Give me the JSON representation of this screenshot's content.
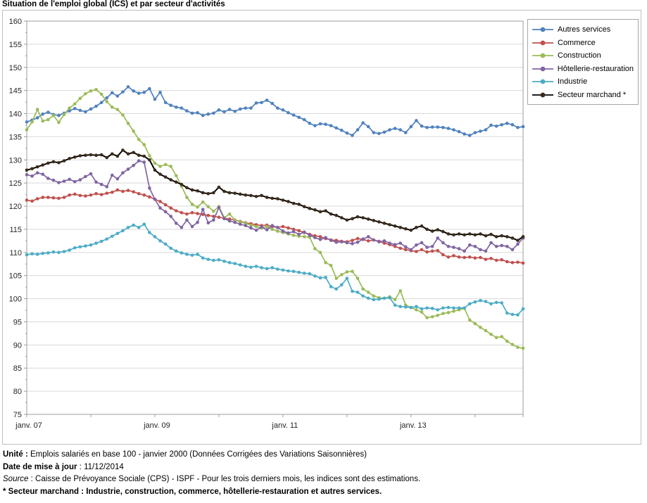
{
  "chart_data": {
    "type": "line",
    "title": "Situation de l'emploi global (ICS) et par secteur d'activités",
    "x_unit": "month",
    "x_start": "janv. 2007",
    "x_end": "oct. 2014",
    "n_points": 94,
    "x_tick_labels": [
      "janv. 07",
      "janv. 09",
      "janv. 11",
      "janv. 13"
    ],
    "x_tick_months": [
      0,
      24,
      48,
      72
    ],
    "x_minor_tick_every_months": 12,
    "ylim": [
      75,
      160
    ],
    "y_major_step": 5,
    "y_minor_step": 2.5,
    "grid": "horizontal-major",
    "grid_color": "#d9d9d9",
    "axis_color": "#9c9c9c",
    "legend_position": "top-right",
    "series": [
      {
        "name": "Autres services",
        "color": "#4F81BD",
        "values": [
          138.2,
          138.6,
          139.1,
          139.9,
          140.3,
          139.8,
          139.6,
          140.1,
          140.6,
          141.1,
          140.7,
          140.4,
          141.0,
          141.6,
          142.4,
          143.4,
          144.5,
          143.8,
          144.7,
          145.8,
          144.9,
          144.4,
          144.6,
          145.4,
          143.1,
          144.6,
          142.4,
          141.8,
          141.4,
          141.2,
          140.6,
          140.1,
          140.2,
          139.6,
          139.9,
          140.1,
          140.8,
          140.4,
          140.9,
          140.5,
          141.0,
          141.2,
          141.2,
          142.3,
          142.4,
          142.9,
          142.2,
          141.2,
          140.8,
          140.2,
          139.7,
          139.2,
          138.7,
          137.9,
          137.4,
          137.8,
          137.7,
          137.4,
          136.9,
          136.4,
          135.8,
          135.3,
          136.5,
          138.0,
          137.2,
          135.9,
          135.7,
          136.0,
          136.5,
          136.8,
          136.5,
          135.9,
          137.2,
          138.5,
          137.3,
          137.0,
          137.1,
          137.1,
          137.0,
          136.8,
          136.5,
          136.1,
          135.6,
          135.3,
          135.9,
          136.2,
          136.5,
          137.5,
          137.3,
          137.6,
          137.9,
          137.6,
          137.0,
          137.2
        ]
      },
      {
        "name": "Commerce",
        "color": "#C0504D",
        "values": [
          121.3,
          121.1,
          121.6,
          121.9,
          121.9,
          121.8,
          121.7,
          121.9,
          122.4,
          122.6,
          122.3,
          122.2,
          122.4,
          122.7,
          122.5,
          122.8,
          123.0,
          123.5,
          123.2,
          123.4,
          123.1,
          122.7,
          122.4,
          122.0,
          121.5,
          121.0,
          120.3,
          119.6,
          119.0,
          118.6,
          118.3,
          118.6,
          118.4,
          118.2,
          118.0,
          117.8,
          117.6,
          117.4,
          117.2,
          117.0,
          116.7,
          116.4,
          116.2,
          116.0,
          115.8,
          115.9,
          115.6,
          115.4,
          115.6,
          115.3,
          115.0,
          114.7,
          114.3,
          113.9,
          113.6,
          113.4,
          113.0,
          112.7,
          112.6,
          112.4,
          112.3,
          112.6,
          113.0,
          112.8,
          112.5,
          112.7,
          112.4,
          112.0,
          111.7,
          111.3,
          110.9,
          110.6,
          110.4,
          110.2,
          110.6,
          110.1,
          110.3,
          110.4,
          109.5,
          109.0,
          109.3,
          109.0,
          108.9,
          109.0,
          108.8,
          108.9,
          108.5,
          108.7,
          108.3,
          108.4,
          108.0,
          107.8,
          107.9,
          107.7
        ]
      },
      {
        "name": "Construction",
        "color": "#9BBB59",
        "values": [
          136.5,
          138.2,
          140.9,
          138.4,
          138.7,
          139.6,
          138.1,
          139.8,
          141.2,
          142.1,
          143.3,
          144.3,
          144.9,
          145.2,
          144.2,
          142.6,
          141.4,
          140.9,
          139.7,
          137.9,
          136.2,
          134.4,
          133.3,
          130.9,
          129.3,
          128.6,
          129.0,
          128.6,
          126.6,
          124.3,
          121.9,
          120.4,
          119.8,
          120.9,
          119.9,
          118.9,
          119.9,
          117.5,
          118.3,
          117.0,
          116.6,
          116.3,
          115.9,
          115.6,
          115.3,
          115.6,
          115.0,
          114.6,
          114.3,
          114.0,
          113.7,
          113.5,
          113.4,
          113.3,
          110.8,
          110.0,
          107.8,
          107.2,
          104.4,
          105.2,
          105.8,
          105.9,
          104.4,
          102.1,
          101.4,
          100.6,
          100.2,
          100.1,
          100.4,
          99.8,
          101.7,
          98.6,
          98.1,
          97.6,
          97.1,
          95.9,
          96.1,
          96.4,
          96.8,
          97.0,
          97.3,
          97.6,
          97.9,
          95.4,
          94.6,
          93.8,
          93.1,
          92.3,
          91.6,
          91.8,
          90.8,
          90.1,
          89.5,
          89.3
        ]
      },
      {
        "name": "Hôtellerie-restauration",
        "color": "#8064A2",
        "values": [
          126.8,
          126.5,
          127.2,
          126.9,
          126.0,
          125.6,
          125.1,
          125.4,
          125.8,
          125.3,
          125.7,
          126.4,
          127.0,
          125.2,
          124.7,
          124.2,
          126.7,
          125.9,
          127.2,
          128.0,
          128.8,
          129.8,
          129.5,
          123.9,
          121.5,
          119.6,
          118.8,
          117.8,
          116.3,
          115.4,
          117.0,
          115.6,
          116.5,
          119.3,
          116.4,
          117.0,
          119.7,
          117.3,
          116.8,
          116.5,
          116.1,
          115.8,
          115.3,
          114.8,
          115.5,
          114.9,
          115.8,
          115.4,
          114.6,
          114.2,
          114.5,
          113.9,
          114.4,
          113.7,
          113.2,
          112.8,
          113.2,
          112.6,
          112.2,
          112.3,
          112.1,
          111.9,
          112.2,
          112.9,
          113.4,
          112.7,
          112.3,
          112.5,
          112.0,
          111.7,
          112.0,
          111.2,
          110.6,
          111.6,
          112.1,
          111.1,
          111.3,
          113.1,
          112.1,
          111.3,
          111.1,
          110.8,
          110.3,
          111.6,
          111.3,
          110.6,
          110.3,
          112.1,
          111.3,
          111.5,
          111.3,
          110.6,
          111.8,
          113.1
        ]
      },
      {
        "name": "Industrie",
        "color": "#4BACC6",
        "values": [
          109.5,
          109.7,
          109.6,
          109.8,
          109.9,
          110.1,
          110.0,
          110.2,
          110.5,
          111.0,
          111.2,
          111.4,
          111.6,
          112.0,
          112.4,
          112.9,
          113.5,
          114.1,
          114.7,
          115.4,
          115.9,
          115.4,
          116.1,
          114.3,
          113.4,
          112.5,
          111.8,
          110.9,
          110.3,
          109.9,
          109.6,
          109.4,
          109.6,
          108.8,
          108.5,
          108.3,
          108.4,
          108.1,
          107.8,
          107.6,
          107.3,
          107.0,
          106.8,
          107.0,
          106.7,
          106.5,
          106.7,
          106.4,
          106.2,
          106.0,
          105.9,
          105.7,
          105.5,
          105.4,
          104.9,
          104.5,
          104.6,
          102.6,
          102.1,
          103.0,
          104.4,
          101.6,
          101.4,
          100.6,
          100.1,
          99.8,
          99.9,
          100.1,
          100.2,
          98.6,
          98.3,
          98.2,
          98.1,
          98.3,
          97.8,
          98.0,
          97.9,
          97.6,
          98.0,
          98.1,
          98.0,
          98.0,
          98.0,
          98.9,
          99.3,
          99.6,
          99.4,
          98.9,
          99.2,
          99.1,
          96.9,
          96.6,
          96.5,
          97.8
        ]
      },
      {
        "name": "Secteur marchand *",
        "color": "#000000",
        "marker_color": "#3B2A17",
        "line_width": 2,
        "values": [
          127.8,
          128.1,
          128.5,
          128.9,
          129.3,
          129.6,
          129.4,
          129.8,
          130.3,
          130.6,
          130.9,
          131.0,
          131.1,
          131.0,
          131.1,
          130.5,
          131.3,
          130.8,
          132.1,
          131.3,
          131.6,
          131.0,
          130.8,
          130.0,
          127.8,
          126.9,
          126.3,
          125.7,
          125.2,
          124.7,
          124.0,
          123.5,
          123.3,
          122.9,
          122.7,
          122.9,
          124.1,
          123.2,
          122.9,
          122.8,
          122.6,
          122.4,
          122.3,
          122.1,
          122.3,
          121.9,
          121.7,
          121.6,
          121.3,
          121.0,
          120.6,
          120.4,
          119.9,
          119.5,
          119.2,
          118.8,
          119.0,
          118.3,
          118.0,
          117.5,
          117.0,
          117.3,
          117.7,
          117.5,
          117.2,
          116.9,
          116.6,
          116.3,
          116.0,
          115.7,
          115.4,
          115.1,
          114.8,
          115.4,
          115.7,
          115.0,
          114.6,
          114.9,
          114.5,
          114.0,
          113.8,
          114.0,
          113.8,
          114.0,
          113.8,
          114.0,
          113.6,
          113.9,
          113.4,
          113.6,
          113.4,
          113.1,
          112.6,
          113.4
        ]
      }
    ]
  },
  "footer": {
    "lines": [
      {
        "label": "Unité",
        "sep": " : ",
        "text": "Emplois salariés en base 100 - janvier 2000 (Données Corrigées des Variations Saisonnières)"
      },
      {
        "label": "Date de mise à jour",
        "sep": " : ",
        "text": "11/12/2014"
      },
      {
        "label": "Source",
        "sep": " : ",
        "text": "Caisse de Prévoyance Sociale (CPS) - ISPF - Pour les trois derniers mois, les indices sont des estimations."
      },
      {
        "label": "* Secteur marchand",
        "sep": " : ",
        "text": "Industrie, construction, commerce, hôtellerie-restauration et autres services."
      }
    ]
  }
}
